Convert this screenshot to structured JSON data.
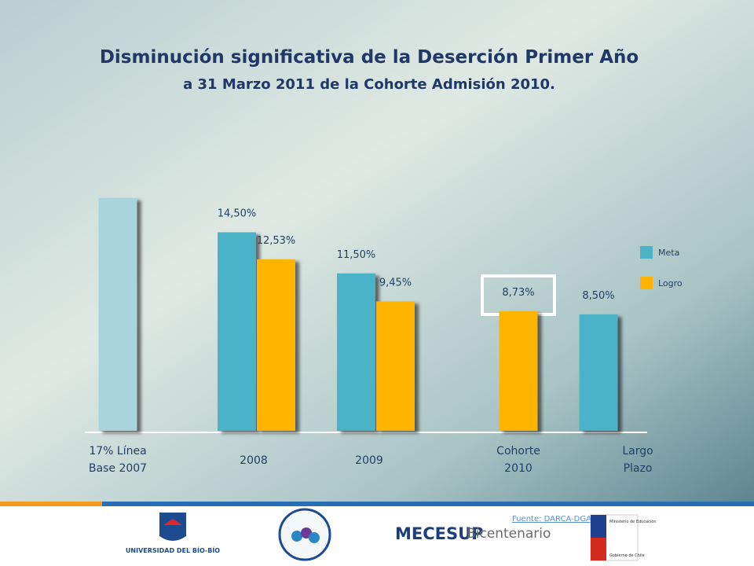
{
  "chart_data": {
    "type": "bar",
    "title": "Disminución significativa de la Deserción Primer Año",
    "subtitle": "a 31 Marzo 2011 de la Cohorte Admisión 2010.",
    "categories": [
      [
        "17% Línea",
        "Base 2007"
      ],
      [
        "2008"
      ],
      [
        "2009"
      ],
      [
        "Cohorte",
        "2010"
      ],
      [
        "Largo",
        "Plazo"
      ]
    ],
    "series": [
      {
        "name": "Meta",
        "color": "#4bb3c8",
        "colors": [
          "#a9d4de",
          "#4bb3c8",
          "#4bb3c8",
          "#4bb3c8",
          "#4bb3c8"
        ],
        "values": [
          17,
          14.5,
          11.5,
          null,
          8.5
        ],
        "value_labels": [
          null,
          "14,50%",
          "11,50%",
          null,
          "8,50%"
        ]
      },
      {
        "name": "Logro",
        "color": "#ffb400",
        "values": [
          null,
          12.53,
          9.45,
          8.73,
          null
        ],
        "value_labels": [
          null,
          "12,53%",
          "9,45%",
          "8,73%",
          null
        ]
      }
    ],
    "ylim": [
      0,
      17
    ],
    "legend": "right",
    "source": "Fuente: DARCA-DGAI"
  },
  "footer": {
    "university": "UNIVERSIDAD DEL BÍO-BÍO",
    "program": "MECESUP",
    "program_suffix": "Bicentenario",
    "ministry": "Ministerio de Educación",
    "government": "Gobierno de Chile"
  }
}
